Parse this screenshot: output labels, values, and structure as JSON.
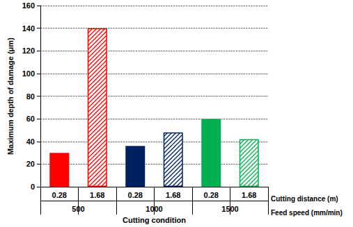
{
  "chart_data": {
    "type": "bar",
    "y_label": "Maximum depth of damage (μm)",
    "x_label": "Cutting condition",
    "categories": [
      "0.28",
      "1.68",
      "0.28",
      "1.68",
      "0.28",
      "1.68"
    ],
    "groups": [
      "500",
      "1000",
      "1500"
    ],
    "row_labels": [
      "Cutting distance (m)",
      "Feed speed (mm/min)"
    ],
    "values": [
      30,
      140,
      36,
      48,
      60,
      42
    ],
    "colors": [
      "#ff0000",
      "#ff0000",
      "#002060",
      "#002060",
      "#00b050",
      "#00b050"
    ],
    "ylim": [
      0,
      160
    ],
    "yticks": [
      0,
      20,
      40,
      60,
      80,
      100,
      120,
      140,
      160
    ],
    "grid": true
  }
}
